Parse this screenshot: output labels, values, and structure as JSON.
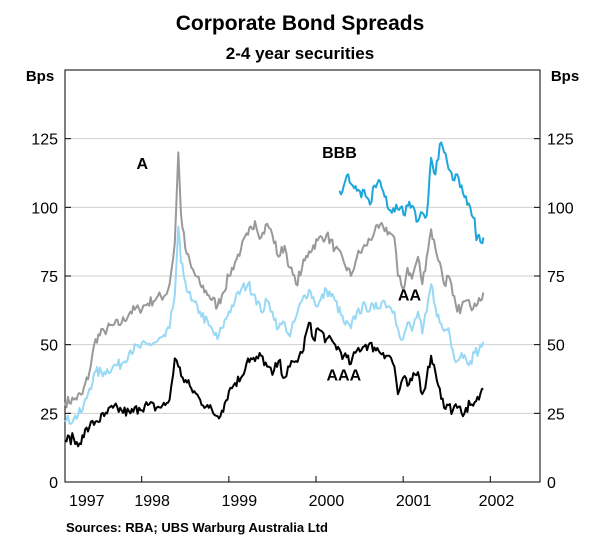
{
  "chart_data": {
    "type": "line",
    "title": "Corporate Bond Spreads",
    "subtitle": "2-4 year securities",
    "ylabel_left": "Bps",
    "ylabel_right": "Bps",
    "ylim": [
      0,
      150
    ],
    "yticks": [
      0,
      25,
      50,
      75,
      100,
      125
    ],
    "xlim": [
      1997.0,
      2002.45
    ],
    "xticks": [
      {
        "label": "1997",
        "pos": 1997.25
      },
      {
        "label": "1998",
        "pos": 1998.0
      },
      {
        "label": "1999",
        "pos": 1999.0
      },
      {
        "label": "2000",
        "pos": 2000.0
      },
      {
        "label": "2001",
        "pos": 2001.0
      },
      {
        "label": "2002",
        "pos": 2001.95
      }
    ],
    "source": "Sources: RBA; UBS Warburg Australia Ltd",
    "series": [
      {
        "name": "A",
        "color": "#999999",
        "points": [
          [
            1997.0,
            29
          ],
          [
            1997.1,
            30
          ],
          [
            1997.2,
            32
          ],
          [
            1997.28,
            40
          ],
          [
            1997.35,
            52
          ],
          [
            1997.45,
            55
          ],
          [
            1997.55,
            57
          ],
          [
            1997.65,
            58
          ],
          [
            1997.75,
            62
          ],
          [
            1997.85,
            63
          ],
          [
            1997.95,
            65
          ],
          [
            1998.05,
            67
          ],
          [
            1998.15,
            68
          ],
          [
            1998.2,
            72
          ],
          [
            1998.26,
            87
          ],
          [
            1998.3,
            120
          ],
          [
            1998.33,
            98
          ],
          [
            1998.38,
            85
          ],
          [
            1998.45,
            78
          ],
          [
            1998.55,
            72
          ],
          [
            1998.65,
            68
          ],
          [
            1998.75,
            64
          ],
          [
            1998.8,
            68
          ],
          [
            1998.88,
            75
          ],
          [
            1998.95,
            80
          ],
          [
            1999.02,
            85
          ],
          [
            1999.1,
            90
          ],
          [
            1999.18,
            95
          ],
          [
            1999.25,
            89
          ],
          [
            1999.32,
            94
          ],
          [
            1999.38,
            90
          ],
          [
            1999.45,
            82
          ],
          [
            1999.52,
            86
          ],
          [
            1999.58,
            78
          ],
          [
            1999.65,
            72
          ],
          [
            1999.72,
            78
          ],
          [
            1999.8,
            84
          ],
          [
            1999.9,
            88
          ],
          [
            2000.0,
            90
          ],
          [
            2000.1,
            85
          ],
          [
            2000.2,
            80
          ],
          [
            2000.28,
            75
          ],
          [
            2000.35,
            82
          ],
          [
            2000.45,
            86
          ],
          [
            2000.55,
            91
          ],
          [
            2000.65,
            93
          ],
          [
            2000.72,
            91
          ],
          [
            2000.78,
            89
          ],
          [
            2000.82,
            75
          ],
          [
            2000.88,
            70
          ],
          [
            2000.93,
            78
          ],
          [
            2000.98,
            74
          ],
          [
            2001.05,
            82
          ],
          [
            2001.1,
            72
          ],
          [
            2001.15,
            82
          ],
          [
            2001.2,
            92
          ],
          [
            2001.25,
            85
          ],
          [
            2001.3,
            80
          ],
          [
            2001.35,
            72
          ],
          [
            2001.4,
            75
          ],
          [
            2001.45,
            68
          ],
          [
            2001.5,
            62
          ],
          [
            2001.55,
            64
          ],
          [
            2001.6,
            66
          ],
          [
            2001.65,
            64
          ],
          [
            2001.7,
            65
          ],
          [
            2001.75,
            67
          ],
          [
            2001.8,
            69
          ]
        ]
      },
      {
        "name": "AA",
        "color": "#99d9f5",
        "points": [
          [
            1997.0,
            22
          ],
          [
            1997.1,
            23
          ],
          [
            1997.2,
            26
          ],
          [
            1997.28,
            34
          ],
          [
            1997.35,
            40
          ],
          [
            1997.45,
            40
          ],
          [
            1997.55,
            42
          ],
          [
            1997.65,
            43
          ],
          [
            1997.75,
            48
          ],
          [
            1997.85,
            49
          ],
          [
            1997.95,
            50
          ],
          [
            1998.05,
            51
          ],
          [
            1998.15,
            53
          ],
          [
            1998.2,
            56
          ],
          [
            1998.26,
            68
          ],
          [
            1998.3,
            93
          ],
          [
            1998.33,
            80
          ],
          [
            1998.38,
            73
          ],
          [
            1998.45,
            66
          ],
          [
            1998.55,
            62
          ],
          [
            1998.65,
            57
          ],
          [
            1998.75,
            52
          ],
          [
            1998.8,
            56
          ],
          [
            1998.88,
            62
          ],
          [
            1998.95,
            66
          ],
          [
            1999.02,
            70
          ],
          [
            1999.1,
            72
          ],
          [
            1999.18,
            68
          ],
          [
            1999.25,
            62
          ],
          [
            1999.32,
            66
          ],
          [
            1999.38,
            62
          ],
          [
            1999.45,
            56
          ],
          [
            1999.52,
            58
          ],
          [
            1999.58,
            53
          ],
          [
            1999.65,
            60
          ],
          [
            1999.72,
            66
          ],
          [
            1999.8,
            70
          ],
          [
            1999.9,
            64
          ],
          [
            2000.0,
            70
          ],
          [
            2000.1,
            66
          ],
          [
            2000.2,
            58
          ],
          [
            2000.28,
            56
          ],
          [
            2000.35,
            62
          ],
          [
            2000.45,
            64
          ],
          [
            2000.55,
            63
          ],
          [
            2000.65,
            66
          ],
          [
            2000.72,
            64
          ],
          [
            2000.78,
            62
          ],
          [
            2000.82,
            56
          ],
          [
            2000.88,
            52
          ],
          [
            2000.93,
            58
          ],
          [
            2000.98,
            55
          ],
          [
            2001.05,
            62
          ],
          [
            2001.1,
            54
          ],
          [
            2001.15,
            62
          ],
          [
            2001.2,
            72
          ],
          [
            2001.25,
            64
          ],
          [
            2001.3,
            58
          ],
          [
            2001.35,
            55
          ],
          [
            2001.4,
            56
          ],
          [
            2001.45,
            48
          ],
          [
            2001.5,
            44
          ],
          [
            2001.55,
            47
          ],
          [
            2001.6,
            45
          ],
          [
            2001.65,
            44
          ],
          [
            2001.7,
            47
          ],
          [
            2001.75,
            48
          ],
          [
            2001.8,
            51
          ]
        ]
      },
      {
        "name": "AAA",
        "color": "#000000",
        "points": [
          [
            1997.0,
            15
          ],
          [
            1997.1,
            16
          ],
          [
            1997.15,
            13
          ],
          [
            1997.2,
            17
          ],
          [
            1997.28,
            20
          ],
          [
            1997.35,
            22
          ],
          [
            1997.45,
            24
          ],
          [
            1997.55,
            27
          ],
          [
            1997.65,
            26
          ],
          [
            1997.75,
            25
          ],
          [
            1997.85,
            27
          ],
          [
            1997.95,
            28
          ],
          [
            1998.05,
            27
          ],
          [
            1998.15,
            28
          ],
          [
            1998.2,
            30
          ],
          [
            1998.26,
            45
          ],
          [
            1998.3,
            42
          ],
          [
            1998.35,
            38
          ],
          [
            1998.45,
            34
          ],
          [
            1998.55,
            30
          ],
          [
            1998.65,
            27
          ],
          [
            1998.75,
            24
          ],
          [
            1998.8,
            26
          ],
          [
            1998.88,
            33
          ],
          [
            1998.95,
            36
          ],
          [
            1999.02,
            38
          ],
          [
            1999.1,
            45
          ],
          [
            1999.18,
            44
          ],
          [
            1999.25,
            46
          ],
          [
            1999.32,
            42
          ],
          [
            1999.38,
            39
          ],
          [
            1999.45,
            44
          ],
          [
            1999.52,
            38
          ],
          [
            1999.58,
            42
          ],
          [
            1999.65,
            44
          ],
          [
            1999.72,
            47
          ],
          [
            1999.8,
            58
          ],
          [
            1999.85,
            52
          ],
          [
            1999.9,
            56
          ],
          [
            2000.0,
            52
          ],
          [
            2000.1,
            50
          ],
          [
            2000.2,
            46
          ],
          [
            2000.28,
            43
          ],
          [
            2000.35,
            48
          ],
          [
            2000.45,
            50
          ],
          [
            2000.55,
            49
          ],
          [
            2000.65,
            47
          ],
          [
            2000.72,
            46
          ],
          [
            2000.78,
            42
          ],
          [
            2000.82,
            32
          ],
          [
            2000.88,
            38
          ],
          [
            2000.93,
            35
          ],
          [
            2000.98,
            37
          ],
          [
            2001.05,
            40
          ],
          [
            2001.1,
            32
          ],
          [
            2001.15,
            38
          ],
          [
            2001.2,
            46
          ],
          [
            2001.25,
            40
          ],
          [
            2001.3,
            34
          ],
          [
            2001.35,
            27
          ],
          [
            2001.4,
            28
          ],
          [
            2001.45,
            26
          ],
          [
            2001.5,
            27
          ],
          [
            2001.55,
            25
          ],
          [
            2001.6,
            27
          ],
          [
            2001.65,
            28
          ],
          [
            2001.7,
            29
          ],
          [
            2001.75,
            30
          ],
          [
            2001.8,
            34
          ]
        ]
      },
      {
        "name": "BBB",
        "color": "#1ea6dc",
        "points": [
          [
            2000.15,
            106
          ],
          [
            2000.2,
            108
          ],
          [
            2000.25,
            112
          ],
          [
            2000.3,
            108
          ],
          [
            2000.35,
            106
          ],
          [
            2000.45,
            104
          ],
          [
            2000.5,
            101
          ],
          [
            2000.55,
            108
          ],
          [
            2000.6,
            110
          ],
          [
            2000.65,
            106
          ],
          [
            2000.7,
            100
          ],
          [
            2000.75,
            98
          ],
          [
            2000.8,
            101
          ],
          [
            2000.85,
            100
          ],
          [
            2000.9,
            97
          ],
          [
            2000.95,
            102
          ],
          [
            2001.0,
            100
          ],
          [
            2001.05,
            95
          ],
          [
            2001.1,
            98
          ],
          [
            2001.15,
            97
          ],
          [
            2001.2,
            118
          ],
          [
            2001.25,
            112
          ],
          [
            2001.3,
            123
          ],
          [
            2001.35,
            120
          ],
          [
            2001.4,
            114
          ],
          [
            2001.45,
            110
          ],
          [
            2001.5,
            112
          ],
          [
            2001.55,
            108
          ],
          [
            2001.6,
            104
          ],
          [
            2001.65,
            100
          ],
          [
            2001.7,
            96
          ],
          [
            2001.72,
            88
          ],
          [
            2001.75,
            90
          ],
          [
            2001.78,
            87
          ],
          [
            2001.8,
            89
          ]
        ]
      }
    ],
    "labels": [
      {
        "text": "A",
        "x": 1997.82,
        "y": 114
      },
      {
        "text": "BBB",
        "x": 1999.95,
        "y": 118
      },
      {
        "text": "AA",
        "x": 2000.82,
        "y": 66
      },
      {
        "text": "AAA",
        "x": 2000.0,
        "y": 37
      }
    ]
  }
}
